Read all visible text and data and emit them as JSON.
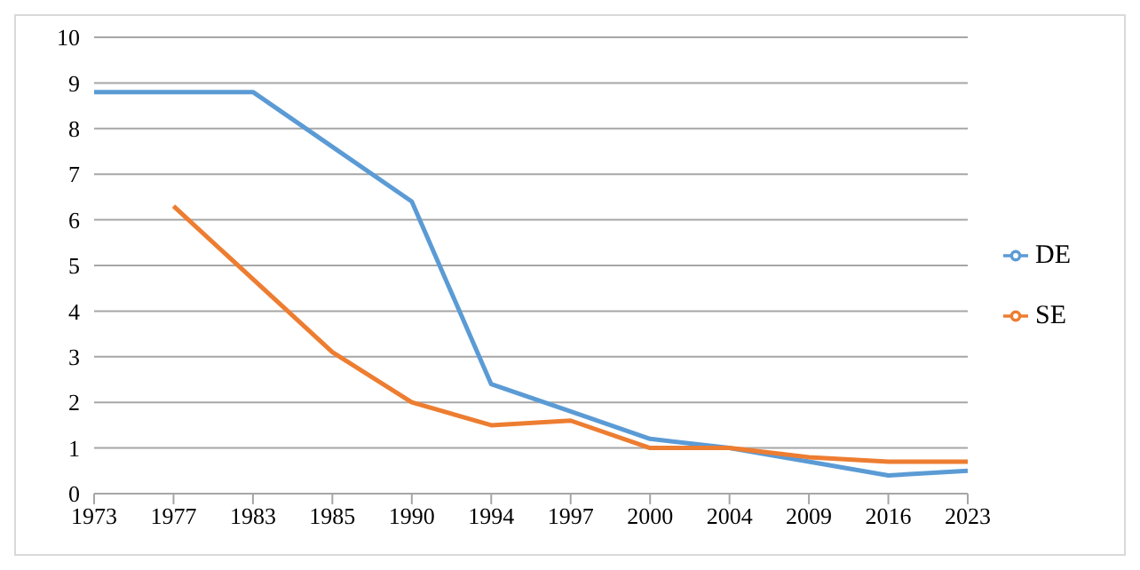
{
  "chart_data": {
    "type": "line",
    "categories": [
      "1973",
      "1977",
      "1983",
      "1985",
      "1990",
      "1994",
      "1997",
      "2000",
      "2004",
      "2009",
      "2016",
      "2023"
    ],
    "series": [
      {
        "name": "DE",
        "color": "#5b9bd5",
        "values": [
          8.8,
          8.8,
          8.8,
          7.6,
          6.4,
          2.4,
          1.8,
          1.2,
          1.0,
          0.7,
          0.4,
          0.5
        ]
      },
      {
        "name": "SE",
        "color": "#ed7d31",
        "values": [
          null,
          6.3,
          4.7,
          3.1,
          2.0,
          1.5,
          1.6,
          1.0,
          1.0,
          0.8,
          0.7,
          0.7
        ]
      }
    ],
    "ylim": [
      0,
      10
    ],
    "yticks": [
      0,
      1,
      2,
      3,
      4,
      5,
      6,
      7,
      8,
      9,
      10
    ],
    "grid": "y",
    "legend": "right",
    "marker": "none",
    "line_style": "solid"
  }
}
